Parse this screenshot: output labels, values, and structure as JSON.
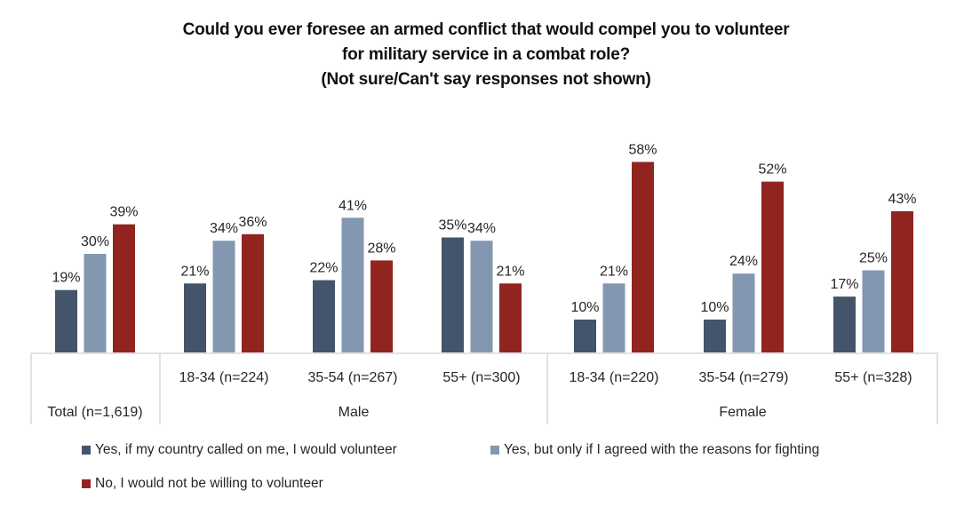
{
  "chart_data": {
    "type": "bar",
    "title": [
      "Could you ever foresee an armed conflict that would compel you to volunteer",
      "for military service in a combat role?",
      "(Not sure/Can't say responses not shown)"
    ],
    "xlabel": "",
    "ylabel": "",
    "ylim": [
      0,
      60
    ],
    "grid": false,
    "categories": [
      {
        "label": "Total (n=1,619)",
        "group": ""
      },
      {
        "label": "18-34 (n=224)",
        "group": "Male"
      },
      {
        "label": "35-54 (n=267)",
        "group": "Male"
      },
      {
        "label": "55+ (n=300)",
        "group": "Male"
      },
      {
        "label": "18-34 (n=220)",
        "group": "Female"
      },
      {
        "label": "35-54 (n=279)",
        "group": "Female"
      },
      {
        "label": "55+ (n=328)",
        "group": "Female"
      }
    ],
    "groups": [
      "Male",
      "Female"
    ],
    "series": [
      {
        "name": "Yes, if my country called on me, I would volunteer",
        "color": "#44546A",
        "values": [
          19,
          21,
          22,
          35,
          10,
          10,
          17
        ]
      },
      {
        "name": "Yes, but only if I agreed with the reasons for fighting",
        "color": "#8497B0",
        "values": [
          30,
          34,
          41,
          34,
          21,
          24,
          25
        ]
      },
      {
        "name": "No, I would not be willing to volunteer",
        "color": "#922420",
        "values": [
          39,
          36,
          28,
          21,
          58,
          52,
          43
        ]
      }
    ],
    "value_format": "percent",
    "legend_position": "bottom-left"
  }
}
